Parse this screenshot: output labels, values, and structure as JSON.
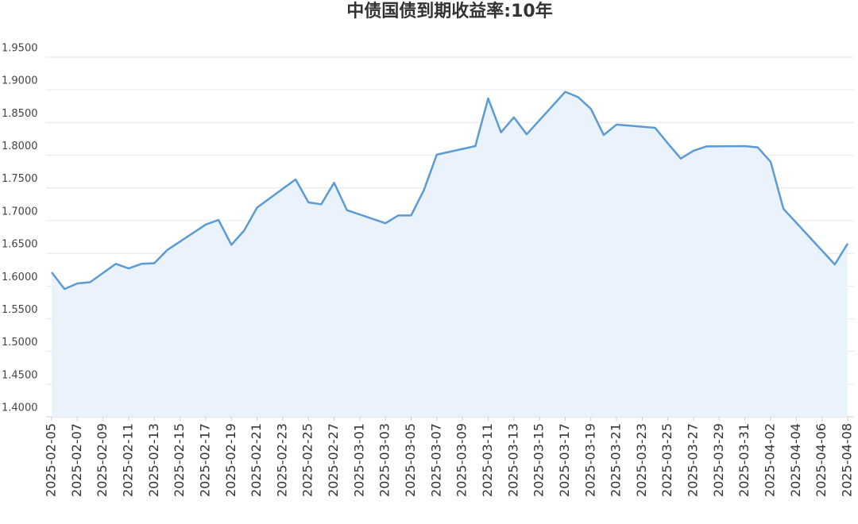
{
  "chart_data": {
    "type": "line",
    "title": "中债国债到期收益率:10年",
    "x": [
      "2025-02-05",
      "2025-02-06",
      "2025-02-07",
      "2025-02-08",
      "2025-02-10",
      "2025-02-11",
      "2025-02-12",
      "2025-02-13",
      "2025-02-14",
      "2025-02-17",
      "2025-02-18",
      "2025-02-19",
      "2025-02-20",
      "2025-02-21",
      "2025-02-24",
      "2025-02-25",
      "2025-02-26",
      "2025-02-27",
      "2025-02-28",
      "2025-03-03",
      "2025-03-04",
      "2025-03-05",
      "2025-03-06",
      "2025-03-07",
      "2025-03-10",
      "2025-03-11",
      "2025-03-12",
      "2025-03-13",
      "2025-03-14",
      "2025-03-17",
      "2025-03-18",
      "2025-03-19",
      "2025-03-20",
      "2025-03-21",
      "2025-03-24",
      "2025-03-25",
      "2025-03-26",
      "2025-03-27",
      "2025-03-28",
      "2025-03-31",
      "2025-04-01",
      "2025-04-02",
      "2025-04-03",
      "2025-04-07",
      "2025-04-08"
    ],
    "series": [
      {
        "name": "中债国债到期收益率:10年",
        "color": "#5b9bd5",
        "values": [
          1.621,
          1.5955,
          1.604,
          1.606,
          1.634,
          1.627,
          1.634,
          1.635,
          1.655,
          1.694,
          1.701,
          1.663,
          1.685,
          1.72,
          1.763,
          1.728,
          1.725,
          1.758,
          1.716,
          1.696,
          1.708,
          1.708,
          1.747,
          1.801,
          1.814,
          1.887,
          1.835,
          1.858,
          1.832,
          1.897,
          1.889,
          1.871,
          1.831,
          1.847,
          1.842,
          1.818,
          1.795,
          1.807,
          1.8135,
          1.814,
          1.812,
          1.79,
          1.718,
          1.633,
          1.665
        ]
      }
    ],
    "xlim": [
      "2025-02-05",
      "2025-04-08"
    ],
    "xticks": [
      "2025-02-05",
      "2025-02-07",
      "2025-02-09",
      "2025-02-11",
      "2025-02-13",
      "2025-02-15",
      "2025-02-17",
      "2025-02-19",
      "2025-02-21",
      "2025-02-23",
      "2025-02-25",
      "2025-02-27",
      "2025-03-01",
      "2025-03-03",
      "2025-03-05",
      "2025-03-07",
      "2025-03-09",
      "2025-03-11",
      "2025-03-13",
      "2025-03-15",
      "2025-03-17",
      "2025-03-19",
      "2025-03-21",
      "2025-03-23",
      "2025-03-25",
      "2025-03-27",
      "2025-03-29",
      "2025-03-31",
      "2025-04-02",
      "2025-04-04",
      "2025-04-06",
      "2025-04-08"
    ],
    "ylim": [
      1.4,
      1.95
    ],
    "yticks": [
      {
        "value": 1.4,
        "label": "1.4000"
      },
      {
        "value": 1.45,
        "label": "1.4500"
      },
      {
        "value": 1.5,
        "label": "1.5000"
      },
      {
        "value": 1.55,
        "label": "1.5500"
      },
      {
        "value": 1.6,
        "label": "1.6000"
      },
      {
        "value": 1.65,
        "label": "1.6500"
      },
      {
        "value": 1.7,
        "label": "1.7000"
      },
      {
        "value": 1.75,
        "label": "1.7500"
      },
      {
        "value": 1.8,
        "label": "1.8000"
      },
      {
        "value": 1.85,
        "label": "1.8500"
      },
      {
        "value": 1.9,
        "label": "1.9000"
      },
      {
        "value": 1.95,
        "label": "1.9500"
      }
    ],
    "grid": true,
    "area_fill": "#eaf2fb"
  }
}
